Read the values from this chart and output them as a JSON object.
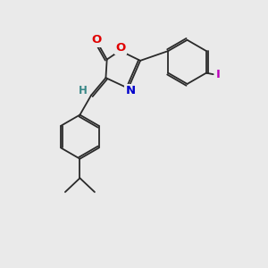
{
  "background_color": "#eaeaea",
  "bond_color": "#2a2a2a",
  "atom_colors": {
    "O": "#e00000",
    "N": "#0000cc",
    "I": "#bb00bb",
    "H": "#3a8888",
    "C": "#2a2a2a"
  },
  "font_size_atom": 9.5,
  "font_size_h": 8.5,
  "lw": 1.3,
  "dbo": 0.07
}
